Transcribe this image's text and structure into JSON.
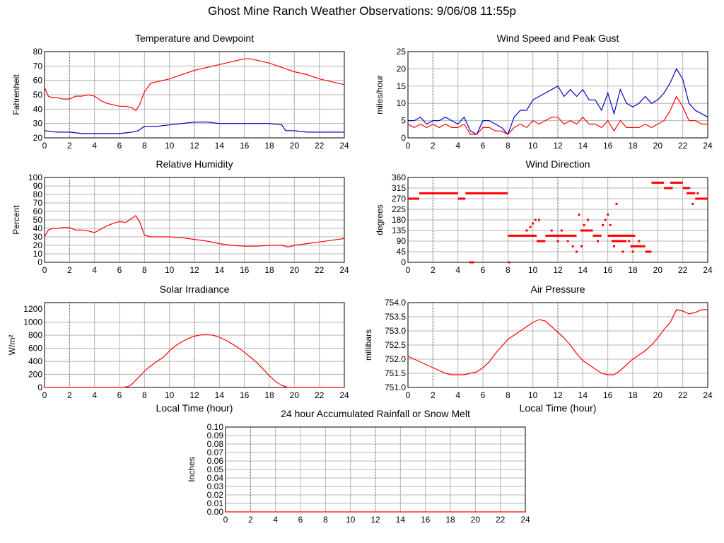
{
  "title": "Ghost Mine Ranch Weather Observations: 9/06/08 11:55p",
  "colors": {
    "primary": "#ff0000",
    "secondary": "#0000c0",
    "grid": "#b4b4b4"
  },
  "chart_data": [
    {
      "id": "temp",
      "type": "line",
      "title": "Temperature and Dewpoint",
      "ylabel": "Fahrenheit",
      "xlabel": "",
      "xlim": [
        0,
        24
      ],
      "ylim": [
        20,
        80
      ],
      "xticks": [
        0,
        2,
        4,
        6,
        8,
        10,
        12,
        14,
        16,
        18,
        20,
        22,
        24
      ],
      "yticks": [
        20,
        30,
        40,
        50,
        60,
        70,
        80
      ],
      "series": [
        {
          "color": "#ff0000",
          "x": [
            0,
            0.3,
            0.6,
            1,
            1.5,
            2,
            2.5,
            3,
            3.5,
            4,
            4.5,
            5,
            5.5,
            6,
            6.5,
            7,
            7.3,
            7.6,
            8,
            8.5,
            9,
            9.5,
            10,
            11,
            12,
            13,
            14,
            15,
            16,
            16.5,
            17,
            18,
            19,
            20,
            21,
            22,
            23,
            24
          ],
          "y": [
            55,
            49,
            48,
            48,
            47,
            47,
            49,
            49,
            50,
            49,
            46,
            44,
            43,
            42,
            42,
            41,
            39,
            43,
            52,
            58,
            59,
            60,
            61,
            64,
            67,
            69,
            71,
            73,
            75,
            75,
            74,
            72,
            69,
            66,
            64,
            61,
            59,
            57
          ]
        },
        {
          "color": "#0000c0",
          "x": [
            0,
            1,
            2,
            3,
            4,
            5,
            6,
            7,
            7.5,
            8,
            9,
            10,
            11,
            12,
            13,
            14,
            15,
            16,
            17,
            18,
            19,
            19.3,
            20,
            21,
            22,
            23,
            24
          ],
          "y": [
            25,
            24,
            24,
            23,
            23,
            23,
            23,
            24,
            25,
            28,
            28,
            29,
            30,
            31,
            31,
            30,
            30,
            30,
            30,
            30,
            29,
            25,
            25,
            24,
            24,
            24,
            24
          ]
        }
      ]
    },
    {
      "id": "wind",
      "type": "line",
      "title": "Wind Speed and Peak Gust",
      "ylabel": "miles/hour",
      "xlabel": "",
      "xlim": [
        0,
        24
      ],
      "ylim": [
        0,
        25
      ],
      "xticks": [
        0,
        2,
        4,
        6,
        8,
        10,
        12,
        14,
        16,
        18,
        20,
        22,
        24
      ],
      "yticks": [
        0,
        5,
        10,
        15,
        20,
        25
      ],
      "series": [
        {
          "color": "#0000c0",
          "x": [
            0,
            0.5,
            1,
            1.5,
            2,
            2.5,
            3,
            3.5,
            4,
            4.5,
            5,
            5.5,
            6,
            6.5,
            7,
            7.5,
            8,
            8.5,
            9,
            9.5,
            10,
            10.5,
            11,
            11.5,
            12,
            12.5,
            13,
            13.5,
            14,
            14.5,
            15,
            15.5,
            16,
            16.5,
            17,
            17.5,
            18,
            18.5,
            19,
            19.5,
            20,
            20.5,
            21,
            21.5,
            22,
            22.5,
            23,
            23.5,
            24
          ],
          "y": [
            5,
            5,
            6,
            4,
            5,
            5,
            6,
            5,
            4,
            6,
            2,
            1,
            5,
            5,
            4,
            3,
            1,
            6,
            8,
            8,
            11,
            12,
            13,
            14,
            15,
            12,
            14,
            12,
            14,
            11,
            11,
            8,
            13,
            7,
            14,
            10,
            9,
            10,
            12,
            10,
            11,
            13,
            16,
            20,
            17,
            10,
            8,
            7,
            6
          ]
        },
        {
          "color": "#ff0000",
          "x": [
            0,
            0.5,
            1,
            1.5,
            2,
            2.5,
            3,
            3.5,
            4,
            4.5,
            5,
            5.5,
            6,
            6.5,
            7,
            7.5,
            8,
            8.5,
            9,
            9.5,
            10,
            10.5,
            11,
            11.5,
            12,
            12.5,
            13,
            13.5,
            14,
            14.5,
            15,
            15.5,
            16,
            16.5,
            17,
            17.5,
            18,
            18.5,
            19,
            19.5,
            20,
            20.5,
            21,
            21.5,
            22,
            22.5,
            23,
            23.5,
            24
          ],
          "y": [
            4,
            3,
            4,
            3,
            4,
            3,
            4,
            3,
            3,
            4,
            1,
            1,
            3,
            3,
            2,
            2,
            1,
            3,
            4,
            3,
            5,
            4,
            5,
            6,
            6,
            4,
            5,
            4,
            6,
            4,
            4,
            3,
            5,
            2,
            5,
            3,
            3,
            3,
            4,
            3,
            4,
            5,
            8,
            12,
            9,
            5,
            5,
            4,
            4
          ]
        }
      ]
    },
    {
      "id": "humidity",
      "type": "line",
      "title": "Relative Humidity",
      "ylabel": "Percent",
      "xlabel": "",
      "xlim": [
        0,
        24
      ],
      "ylim": [
        0,
        100
      ],
      "xticks": [
        0,
        2,
        4,
        6,
        8,
        10,
        12,
        14,
        16,
        18,
        20,
        22,
        24
      ],
      "yticks": [
        0,
        10,
        20,
        30,
        40,
        50,
        60,
        70,
        80,
        90,
        100
      ],
      "series": [
        {
          "color": "#ff0000",
          "x": [
            0,
            0.3,
            0.6,
            1,
            1.5,
            2,
            2.5,
            3,
            3.5,
            4,
            4.5,
            5,
            5.5,
            6,
            6.5,
            7,
            7.3,
            7.6,
            8,
            8.5,
            9,
            10,
            11,
            12,
            13,
            14,
            15,
            16,
            17,
            18,
            19,
            19.5,
            20,
            21,
            22,
            23,
            24
          ],
          "y": [
            30,
            38,
            40,
            40,
            41,
            41,
            38,
            38,
            37,
            35,
            39,
            43,
            46,
            48,
            47,
            52,
            55,
            48,
            32,
            30,
            30,
            30,
            29,
            27,
            25,
            22,
            20,
            19,
            19,
            20,
            20,
            18,
            20,
            22,
            24,
            26,
            28
          ]
        }
      ]
    },
    {
      "id": "direction",
      "type": "scatter",
      "title": "Wind Direction",
      "ylabel": "degrees",
      "xlabel": "",
      "xlim": [
        0,
        24
      ],
      "ylim": [
        0,
        360
      ],
      "xticks": [
        0,
        2,
        4,
        6,
        8,
        10,
        12,
        14,
        16,
        18,
        20,
        22,
        24
      ],
      "yticks": [
        0,
        45,
        90,
        135,
        180,
        225,
        270,
        315,
        360
      ],
      "segments": [
        {
          "x": [
            0,
            0.9
          ],
          "y": 270
        },
        {
          "x": [
            0.9,
            4.0
          ],
          "y": 293
        },
        {
          "x": [
            4.0,
            4.6
          ],
          "y": 270
        },
        {
          "x": [
            4.6,
            8.0
          ],
          "y": 293
        },
        {
          "x": [
            8.0,
            10.3
          ],
          "y": 113
        },
        {
          "x": [
            10.3,
            11.0
          ],
          "y": 90
        },
        {
          "x": [
            11.0,
            13.5
          ],
          "y": 113
        },
        {
          "x": [
            13.8,
            14.8
          ],
          "y": 135
        },
        {
          "x": [
            14.8,
            15.5
          ],
          "y": 113
        },
        {
          "x": [
            16.0,
            18.2
          ],
          "y": 113
        },
        {
          "x": [
            16.3,
            17.5
          ],
          "y": 90
        },
        {
          "x": [
            17.8,
            19.0
          ],
          "y": 68
        },
        {
          "x": [
            19.0,
            19.5
          ],
          "y": 45
        },
        {
          "x": [
            19.5,
            20.5
          ],
          "y": 338
        },
        {
          "x": [
            20.5,
            21.2
          ],
          "y": 315
        },
        {
          "x": [
            21.0,
            22.0
          ],
          "y": 338
        },
        {
          "x": [
            22.0,
            22.6
          ],
          "y": 315
        },
        {
          "x": [
            22.3,
            23.0
          ],
          "y": 293
        },
        {
          "x": [
            23.0,
            24.0
          ],
          "y": 270
        }
      ],
      "points": {
        "x": [
          5.0,
          5.2,
          8.1,
          9.5,
          9.8,
          10.0,
          10.2,
          10.5,
          11.5,
          12.0,
          12.3,
          12.8,
          13.2,
          13.5,
          13.7,
          13.9,
          14.1,
          14.4,
          15.2,
          15.6,
          15.8,
          16.0,
          16.2,
          16.5,
          16.7,
          17.2,
          17.7,
          18.0,
          18.5,
          22.8,
          23.2
        ],
        "y": [
          0,
          0,
          0,
          135,
          150,
          165,
          180,
          180,
          135,
          90,
          135,
          90,
          68,
          45,
          202,
          68,
          158,
          180,
          90,
          158,
          180,
          203,
          158,
          68,
          248,
          45,
          90,
          45,
          90,
          248,
          293
        ]
      }
    },
    {
      "id": "solar",
      "type": "line",
      "title": "Solar Irradiance",
      "ylabel": "W/m²",
      "xlabel": "Local Time (hour)",
      "xlim": [
        0,
        24
      ],
      "ylim": [
        0,
        1300
      ],
      "xticks": [
        0,
        2,
        4,
        6,
        8,
        10,
        12,
        14,
        16,
        18,
        20,
        22,
        24
      ],
      "yticks": [
        0,
        200,
        400,
        600,
        800,
        1000,
        1200
      ],
      "series": [
        {
          "color": "#ff0000",
          "x": [
            0,
            6.3,
            6.7,
            7,
            7.5,
            8,
            8.5,
            9,
            9.5,
            10,
            10.5,
            11,
            11.5,
            12,
            12.5,
            13,
            13.5,
            14,
            14.5,
            15,
            15.5,
            16,
            16.5,
            17,
            17.5,
            18,
            18.5,
            19,
            19.5,
            24
          ],
          "y": [
            0,
            0,
            15,
            50,
            150,
            250,
            330,
            400,
            460,
            560,
            640,
            700,
            750,
            785,
            805,
            810,
            800,
            770,
            725,
            670,
            610,
            540,
            460,
            380,
            280,
            180,
            90,
            30,
            0,
            0
          ]
        }
      ]
    },
    {
      "id": "pressure",
      "type": "line",
      "title": "Air Pressure",
      "ylabel": "millibars",
      "xlabel": "Local Time (hour)",
      "xlim": [
        0,
        24
      ],
      "ylim": [
        751.0,
        754.0
      ],
      "xticks": [
        0,
        2,
        4,
        6,
        8,
        10,
        12,
        14,
        16,
        18,
        20,
        22,
        24
      ],
      "yticks": [
        "751.0",
        "751.5",
        "752.0",
        "752.5",
        "753.0",
        "753.5",
        "754.0"
      ],
      "series": [
        {
          "color": "#ff0000",
          "x": [
            0,
            0.5,
            1,
            1.5,
            2,
            2.5,
            3,
            3.5,
            4,
            4.5,
            5,
            5.5,
            6,
            6.5,
            7,
            7.5,
            8,
            8.5,
            9,
            9.5,
            10,
            10.5,
            11,
            11.5,
            12,
            12.5,
            13,
            13.5,
            14,
            14.5,
            15,
            15.5,
            16,
            16.5,
            17,
            17.5,
            18,
            18.5,
            19,
            19.5,
            20,
            20.5,
            21,
            21.5,
            22,
            22.5,
            23,
            23.5,
            24
          ],
          "y": [
            752.1,
            752.0,
            751.9,
            751.8,
            751.7,
            751.6,
            751.5,
            751.45,
            751.45,
            751.45,
            751.5,
            751.55,
            751.7,
            751.9,
            752.2,
            752.45,
            752.7,
            752.85,
            753.0,
            753.15,
            753.3,
            753.4,
            753.35,
            753.15,
            752.95,
            752.75,
            752.5,
            752.2,
            751.95,
            751.8,
            751.65,
            751.5,
            751.45,
            751.45,
            751.6,
            751.8,
            752.0,
            752.15,
            752.3,
            752.5,
            752.75,
            753.05,
            753.3,
            753.75,
            753.7,
            753.6,
            753.65,
            753.75,
            753.75
          ]
        }
      ]
    },
    {
      "id": "rain",
      "type": "line",
      "title": "24 hour Accumulated Rainfall or Snow Melt",
      "ylabel": "Inches",
      "xlabel": "",
      "xlim": [
        0,
        24
      ],
      "ylim": [
        0,
        0.1
      ],
      "xticks": [
        0,
        2,
        4,
        6,
        8,
        10,
        12,
        14,
        16,
        18,
        20,
        22,
        24
      ],
      "yticks": [
        "0.00",
        "0.01",
        "0.02",
        "0.03",
        "0.04",
        "0.05",
        "0.06",
        "0.07",
        "0.08",
        "0.09",
        "0.10"
      ],
      "series": [
        {
          "color": "#ff0000",
          "x": [
            0,
            24
          ],
          "y": [
            0,
            0
          ]
        }
      ]
    }
  ]
}
